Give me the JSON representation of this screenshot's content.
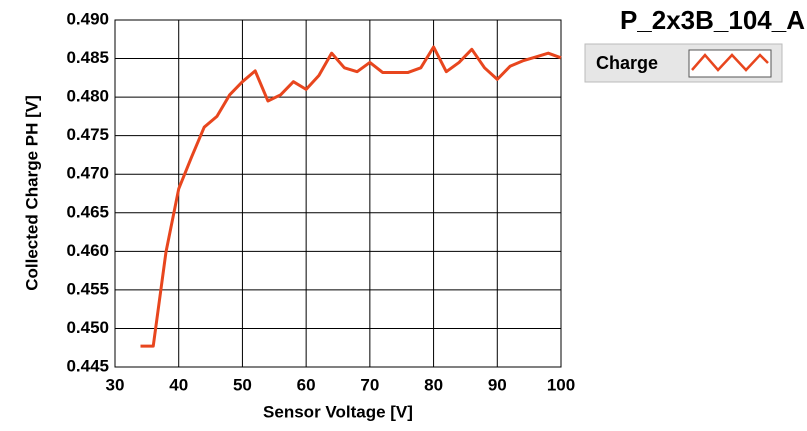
{
  "chart_data": {
    "type": "line",
    "title": "P_2x3B_104_A",
    "x_label": "Sensor Voltage [V]",
    "y_label": "Collected Charge PH [V]",
    "x": [
      34,
      36,
      38,
      40,
      42,
      44,
      46,
      48,
      50,
      52,
      54,
      56,
      58,
      60,
      62,
      64,
      66,
      68,
      70,
      72,
      74,
      76,
      78,
      80,
      82,
      84,
      86,
      88,
      90,
      92,
      94,
      96,
      98,
      100
    ],
    "series": [
      {
        "name": "Charge",
        "color": "#e8461e",
        "values": [
          0.4477,
          0.4477,
          0.4599,
          0.4681,
          0.4722,
          0.4761,
          0.4775,
          0.4803,
          0.482,
          0.4834,
          0.4795,
          0.4803,
          0.482,
          0.481,
          0.4828,
          0.4857,
          0.4838,
          0.4833,
          0.4845,
          0.4832,
          0.4832,
          0.4832,
          0.4838,
          0.4865,
          0.4833,
          0.4845,
          0.4862,
          0.4838,
          0.4823,
          0.484,
          0.4847,
          0.4852,
          0.4857,
          0.4851
        ]
      }
    ],
    "xlim": [
      30,
      100
    ],
    "xticks": [
      30,
      40,
      50,
      60,
      70,
      80,
      90,
      100
    ],
    "ylim": [
      0.445,
      0.49
    ],
    "yticks": [
      0.445,
      {
        "value": 0.45,
        "label": "0.450"
      },
      0.455,
      {
        "value": 0.46,
        "label": "0.460"
      },
      0.465,
      {
        "value": 0.47,
        "label": "0.470"
      },
      0.475,
      {
        "value": 0.48,
        "label": "0.480"
      },
      0.485,
      {
        "value": 0.49,
        "label": "0.490"
      }
    ],
    "grid": true
  }
}
